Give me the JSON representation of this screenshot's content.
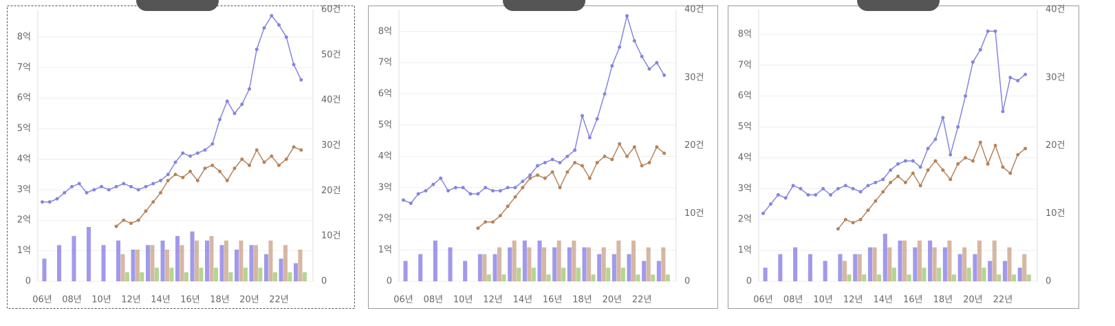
{
  "chart_data": [
    {
      "type": "combo",
      "xlim": [
        2005.7,
        2024.3
      ],
      "ylim": [
        0,
        8.9
      ],
      "y2lim": [
        0,
        60
      ],
      "grid": true,
      "xticks": [
        {
          "value": 2006,
          "label": "06년"
        },
        {
          "value": 2008,
          "label": "08년"
        },
        {
          "value": 2010,
          "label": "10년"
        },
        {
          "value": 2012,
          "label": "12년"
        },
        {
          "value": 2014,
          "label": "14년"
        },
        {
          "value": 2016,
          "label": "16년"
        },
        {
          "value": 2018,
          "label": "18년"
        },
        {
          "value": 2020,
          "label": "20년"
        },
        {
          "value": 2022,
          "label": "22년"
        }
      ],
      "yticks": [
        0,
        {
          "value": 1,
          "label": "1억"
        },
        {
          "value": 2,
          "label": "2억"
        },
        {
          "value": 3,
          "label": "3억"
        },
        {
          "value": 4,
          "label": "4억"
        },
        {
          "value": 5,
          "label": "5억"
        },
        {
          "value": 6,
          "label": "6억"
        },
        {
          "value": 7,
          "label": "7억"
        },
        {
          "value": 8,
          "label": "8억"
        }
      ],
      "y2ticks": [
        0,
        {
          "value": 10,
          "label": "10건"
        },
        {
          "value": 20,
          "label": "20건"
        },
        {
          "value": 30,
          "label": "30건"
        },
        {
          "value": 40,
          "label": "40건"
        },
        {
          "value": 50,
          "label": "50건"
        },
        {
          "value": 60,
          "label": "60건"
        }
      ],
      "series": [
        {
          "kind": "bar",
          "axis": "y2",
          "color": "#6f63e0",
          "x": [
            2006,
            2007,
            2008,
            2009,
            2010,
            2011,
            2012,
            2013,
            2014,
            2015,
            2016,
            2017,
            2018,
            2019,
            2020,
            2021,
            2022,
            2023
          ],
          "values": [
            5,
            8,
            10,
            12,
            8,
            9,
            7,
            8,
            9,
            10,
            11,
            9,
            8,
            7,
            8,
            6,
            5,
            4
          ]
        },
        {
          "kind": "bar",
          "axis": "y2",
          "color": "#c09070",
          "x": [
            2011,
            2012,
            2013,
            2014,
            2015,
            2016,
            2017,
            2018,
            2019,
            2020,
            2021,
            2022,
            2023
          ],
          "values": [
            6,
            7,
            8,
            7,
            8,
            9,
            10,
            9,
            9,
            8,
            9,
            8,
            7
          ]
        },
        {
          "kind": "bar",
          "axis": "y2",
          "color": "#8cbf55",
          "x": [
            2011,
            2012,
            2013,
            2014,
            2015,
            2016,
            2017,
            2018,
            2019,
            2020,
            2021,
            2022,
            2023
          ],
          "values": [
            2,
            2,
            3,
            3,
            2,
            3,
            3,
            2,
            3,
            3,
            2,
            2,
            2
          ]
        },
        {
          "kind": "line",
          "axis": "y",
          "color": "#8484e0",
          "x": [
            2006,
            2006.5,
            2007,
            2007.5,
            2008,
            2008.5,
            2009,
            2009.5,
            2010,
            2010.5,
            2011,
            2011.5,
            2012,
            2012.5,
            2013,
            2013.5,
            2014,
            2014.5,
            2015,
            2015.5,
            2016,
            2016.5,
            2017,
            2017.5,
            2018,
            2018.5,
            2019,
            2019.5,
            2020,
            2020.5,
            2021,
            2021.5,
            2022,
            2022.5,
            2023,
            2023.5
          ],
          "values": [
            2.6,
            2.6,
            2.7,
            2.9,
            3.1,
            3.2,
            2.9,
            3.0,
            3.1,
            3.0,
            3.1,
            3.2,
            3.1,
            3.0,
            3.1,
            3.2,
            3.3,
            3.5,
            3.9,
            4.2,
            4.1,
            4.2,
            4.3,
            4.5,
            5.3,
            5.9,
            5.5,
            5.8,
            6.3,
            7.6,
            8.3,
            8.7,
            8.4,
            8.0,
            7.1,
            6.6
          ]
        },
        {
          "kind": "line",
          "axis": "y",
          "color": "#b5835a",
          "x": [
            2011,
            2011.5,
            2012,
            2012.5,
            2013,
            2013.5,
            2014,
            2014.5,
            2015,
            2015.5,
            2016,
            2016.5,
            2017,
            2017.5,
            2018,
            2018.5,
            2019,
            2019.5,
            2020,
            2020.5,
            2021,
            2021.5,
            2022,
            2022.5,
            2023,
            2023.5
          ],
          "values": [
            1.8,
            2.0,
            1.9,
            2.0,
            2.3,
            2.6,
            2.9,
            3.3,
            3.5,
            3.4,
            3.6,
            3.3,
            3.7,
            3.8,
            3.6,
            3.3,
            3.7,
            4.0,
            3.8,
            4.3,
            3.9,
            4.1,
            3.8,
            4.0,
            4.4,
            4.3
          ]
        }
      ]
    },
    {
      "type": "combo",
      "xlim": [
        2005.7,
        2024.3
      ],
      "ylim": [
        0,
        8.7
      ],
      "y2lim": [
        0,
        40
      ],
      "grid": true,
      "xticks": [
        {
          "value": 2006,
          "label": "06년"
        },
        {
          "value": 2008,
          "label": "08년"
        },
        {
          "value": 2010,
          "label": "10년"
        },
        {
          "value": 2012,
          "label": "12년"
        },
        {
          "value": 2014,
          "label": "14년"
        },
        {
          "value": 2016,
          "label": "16년"
        },
        {
          "value": 2018,
          "label": "18년"
        },
        {
          "value": 2020,
          "label": "20년"
        },
        {
          "value": 2022,
          "label": "22년"
        }
      ],
      "yticks": [
        0,
        {
          "value": 1,
          "label": "1억"
        },
        {
          "value": 2,
          "label": "2억"
        },
        {
          "value": 3,
          "label": "3억"
        },
        {
          "value": 4,
          "label": "4억"
        },
        {
          "value": 5,
          "label": "5억"
        },
        {
          "value": 6,
          "label": "6억"
        },
        {
          "value": 7,
          "label": "7억"
        },
        {
          "value": 8,
          "label": "8억"
        }
      ],
      "y2ticks": [
        0,
        {
          "value": 10,
          "label": "10건"
        },
        {
          "value": 20,
          "label": "20건"
        },
        {
          "value": 30,
          "label": "30건"
        },
        {
          "value": 40,
          "label": "40건"
        }
      ],
      "series": [
        {
          "kind": "bar",
          "axis": "y2",
          "color": "#6f63e0",
          "x": [
            2006,
            2007,
            2008,
            2009,
            2010,
            2011,
            2012,
            2013,
            2014,
            2015,
            2016,
            2017,
            2018,
            2019,
            2020,
            2021,
            2022,
            2023
          ],
          "values": [
            3,
            4,
            6,
            5,
            3,
            4,
            4,
            5,
            6,
            6,
            5,
            5,
            5,
            4,
            4,
            4,
            3,
            3
          ]
        },
        {
          "kind": "bar",
          "axis": "y2",
          "color": "#c09070",
          "x": [
            2011,
            2012,
            2013,
            2014,
            2015,
            2016,
            2017,
            2018,
            2019,
            2020,
            2021,
            2022,
            2023
          ],
          "values": [
            4,
            5,
            6,
            5,
            5,
            6,
            6,
            5,
            5,
            6,
            6,
            5,
            5
          ]
        },
        {
          "kind": "bar",
          "axis": "y2",
          "color": "#8cbf55",
          "x": [
            2011,
            2012,
            2013,
            2014,
            2015,
            2016,
            2017,
            2018,
            2019,
            2020,
            2021,
            2022,
            2023
          ],
          "values": [
            1,
            1,
            2,
            2,
            1,
            2,
            2,
            1,
            2,
            2,
            1,
            1,
            1
          ]
        },
        {
          "kind": "line",
          "axis": "y",
          "color": "#8484e0",
          "x": [
            2006,
            2006.5,
            2007,
            2007.5,
            2008,
            2008.5,
            2009,
            2009.5,
            2010,
            2010.5,
            2011,
            2011.5,
            2012,
            2012.5,
            2013,
            2013.5,
            2014,
            2014.5,
            2015,
            2015.5,
            2016,
            2016.5,
            2017,
            2017.5,
            2018,
            2018.5,
            2019,
            2019.5,
            2020,
            2020.5,
            2021,
            2021.5,
            2022,
            2022.5,
            2023,
            2023.5
          ],
          "values": [
            2.6,
            2.5,
            2.8,
            2.9,
            3.1,
            3.3,
            2.9,
            3.0,
            3.0,
            2.8,
            2.8,
            3.0,
            2.9,
            2.9,
            3.0,
            3.0,
            3.2,
            3.4,
            3.7,
            3.8,
            3.9,
            3.8,
            4.0,
            4.2,
            5.3,
            4.6,
            5.2,
            6.0,
            6.9,
            7.5,
            8.5,
            7.7,
            7.2,
            6.8,
            7.0,
            6.6
          ]
        },
        {
          "kind": "line",
          "axis": "y",
          "color": "#b5835a",
          "x": [
            2011,
            2011.5,
            2012,
            2012.5,
            2013,
            2013.5,
            2014,
            2014.5,
            2015,
            2015.5,
            2016,
            2016.5,
            2017,
            2017.5,
            2018,
            2018.5,
            2019,
            2019.5,
            2020,
            2020.5,
            2021,
            2021.5,
            2022,
            2022.5,
            2023,
            2023.5
          ],
          "values": [
            1.7,
            1.9,
            1.9,
            2.1,
            2.4,
            2.7,
            3.0,
            3.3,
            3.4,
            3.3,
            3.5,
            3.0,
            3.5,
            3.8,
            3.7,
            3.3,
            3.8,
            4.0,
            3.9,
            4.4,
            4.0,
            4.3,
            3.7,
            3.8,
            4.3,
            4.1
          ]
        }
      ]
    },
    {
      "type": "combo",
      "xlim": [
        2005.7,
        2024.3
      ],
      "ylim": [
        0,
        8.8
      ],
      "y2lim": [
        0,
        40
      ],
      "grid": true,
      "xticks": [
        {
          "value": 2006,
          "label": "06년"
        },
        {
          "value": 2008,
          "label": "08년"
        },
        {
          "value": 2010,
          "label": "10년"
        },
        {
          "value": 2012,
          "label": "12년"
        },
        {
          "value": 2014,
          "label": "14년"
        },
        {
          "value": 2016,
          "label": "16년"
        },
        {
          "value": 2018,
          "label": "18년"
        },
        {
          "value": 2020,
          "label": "20년"
        },
        {
          "value": 2022,
          "label": "22년"
        }
      ],
      "yticks": [
        0,
        {
          "value": 1,
          "label": "1억"
        },
        {
          "value": 2,
          "label": "2억"
        },
        {
          "value": 3,
          "label": "3억"
        },
        {
          "value": 4,
          "label": "4억"
        },
        {
          "value": 5,
          "label": "5억"
        },
        {
          "value": 6,
          "label": "6억"
        },
        {
          "value": 7,
          "label": "7억"
        },
        {
          "value": 8,
          "label": "8억"
        }
      ],
      "y2ticks": [
        0,
        {
          "value": 10,
          "label": "10건"
        },
        {
          "value": 20,
          "label": "20건"
        },
        {
          "value": 30,
          "label": "30건"
        },
        {
          "value": 40,
          "label": "40건"
        }
      ],
      "series": [
        {
          "kind": "bar",
          "axis": "y2",
          "color": "#6f63e0",
          "x": [
            2006,
            2007,
            2008,
            2009,
            2010,
            2011,
            2012,
            2013,
            2014,
            2015,
            2016,
            2017,
            2018,
            2019,
            2020,
            2021,
            2022,
            2023
          ],
          "values": [
            2,
            4,
            5,
            4,
            3,
            4,
            4,
            5,
            7,
            6,
            5,
            6,
            5,
            4,
            4,
            3,
            3,
            2
          ]
        },
        {
          "kind": "bar",
          "axis": "y2",
          "color": "#c09070",
          "x": [
            2011,
            2012,
            2013,
            2014,
            2015,
            2016,
            2017,
            2018,
            2019,
            2020,
            2021,
            2022,
            2023
          ],
          "values": [
            3,
            4,
            5,
            5,
            6,
            6,
            5,
            6,
            5,
            6,
            6,
            5,
            4
          ]
        },
        {
          "kind": "bar",
          "axis": "y2",
          "color": "#8cbf55",
          "x": [
            2011,
            2012,
            2013,
            2014,
            2015,
            2016,
            2017,
            2018,
            2019,
            2020,
            2021,
            2022,
            2023
          ],
          "values": [
            1,
            1,
            1,
            2,
            1,
            2,
            2,
            1,
            2,
            2,
            1,
            1,
            1
          ]
        },
        {
          "kind": "line",
          "axis": "y",
          "color": "#8484e0",
          "x": [
            2006,
            2006.5,
            2007,
            2007.5,
            2008,
            2008.5,
            2009,
            2009.5,
            2010,
            2010.5,
            2011,
            2011.5,
            2012,
            2012.5,
            2013,
            2013.5,
            2014,
            2014.5,
            2015,
            2015.5,
            2016,
            2016.5,
            2017,
            2017.5,
            2018,
            2018.5,
            2019,
            2019.5,
            2020,
            2020.5,
            2021,
            2021.5,
            2022,
            2022.5,
            2023,
            2023.5
          ],
          "values": [
            2.2,
            2.5,
            2.8,
            2.7,
            3.1,
            3.0,
            2.8,
            2.8,
            3.0,
            2.8,
            3.0,
            3.1,
            3.0,
            2.9,
            3.1,
            3.2,
            3.3,
            3.6,
            3.8,
            3.9,
            3.9,
            3.7,
            4.3,
            4.6,
            5.3,
            4.1,
            5.0,
            6.0,
            7.1,
            7.5,
            8.1,
            8.1,
            5.5,
            6.6,
            6.5,
            6.7
          ]
        },
        {
          "kind": "line",
          "axis": "y",
          "color": "#b5835a",
          "x": [
            2011,
            2011.5,
            2012,
            2012.5,
            2013,
            2013.5,
            2014,
            2014.5,
            2015,
            2015.5,
            2016,
            2016.5,
            2017,
            2017.5,
            2018,
            2018.5,
            2019,
            2019.5,
            2020,
            2020.5,
            2021,
            2021.5,
            2022,
            2022.5,
            2023,
            2023.5
          ],
          "values": [
            1.7,
            2.0,
            1.9,
            2.0,
            2.3,
            2.6,
            2.9,
            3.2,
            3.4,
            3.2,
            3.5,
            3.1,
            3.6,
            3.9,
            3.6,
            3.3,
            3.8,
            4.0,
            3.9,
            4.5,
            3.8,
            4.4,
            3.7,
            3.5,
            4.1,
            4.3
          ]
        }
      ]
    }
  ]
}
